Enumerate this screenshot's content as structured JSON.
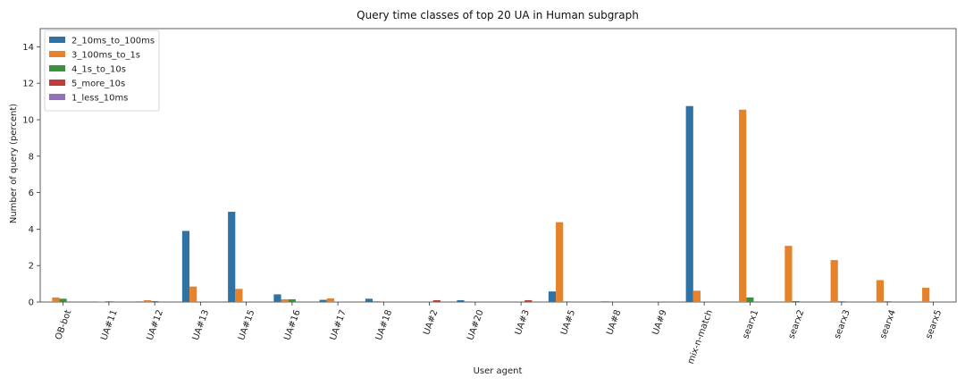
{
  "chart_data": {
    "type": "bar",
    "title": "Query time classes of top 20 UA in Human subgraph",
    "xlabel": "User agent",
    "ylabel": "Number of query (percent)",
    "ylim": [
      0,
      15
    ],
    "yticks": [
      0,
      2,
      4,
      6,
      8,
      10,
      12,
      14
    ],
    "grid": false,
    "legend_position": "top-left",
    "categories": [
      "OB-bot",
      "UA#11",
      "UA#12",
      "UA#13",
      "UA#15",
      "UA#16",
      "UA#17",
      "UA#18",
      "UA#2",
      "UA#20",
      "UA#3",
      "UA#5",
      "UA#8",
      "UA#9",
      "mix-n-match",
      "searx1",
      "searx2",
      "searx3",
      "searx4",
      "searx5"
    ],
    "series": [
      {
        "name": "2_10ms_to_100ms",
        "color": "#2f72a6",
        "values": [
          0,
          0,
          0.03,
          3.9,
          4.95,
          0.42,
          0.12,
          0.18,
          0,
          0.1,
          0,
          0.58,
          0,
          0,
          10.75,
          0,
          0,
          0,
          0,
          0
        ]
      },
      {
        "name": "3_100ms_to_1s",
        "color": "#e5822a",
        "values": [
          0.25,
          0.02,
          0.1,
          0.85,
          0.72,
          0.15,
          0.2,
          0.05,
          0,
          0.04,
          0,
          4.38,
          0.05,
          0,
          0.62,
          10.55,
          3.08,
          2.3,
          1.2,
          0.78
        ]
      },
      {
        "name": "4_1s_to_10s",
        "color": "#3a923a",
        "values": [
          0.18,
          0.04,
          0.05,
          0,
          0,
          0.15,
          0.02,
          0,
          0,
          0,
          0,
          0.03,
          0,
          0,
          0,
          0.25,
          0.05,
          0.04,
          0.04,
          0
        ]
      },
      {
        "name": "5_more_10s",
        "color": "#c03d3e",
        "values": [
          0,
          0,
          0,
          0,
          0,
          0,
          0,
          0,
          0.1,
          0,
          0.1,
          0,
          0,
          0,
          0,
          0,
          0,
          0,
          0,
          0
        ]
      },
      {
        "name": "1_less_10ms",
        "color": "#9271b8",
        "values": [
          0,
          0,
          0,
          0,
          0,
          0,
          0,
          0,
          0,
          0,
          0,
          0,
          0,
          0,
          0,
          0,
          0,
          0,
          0,
          0
        ]
      }
    ]
  }
}
